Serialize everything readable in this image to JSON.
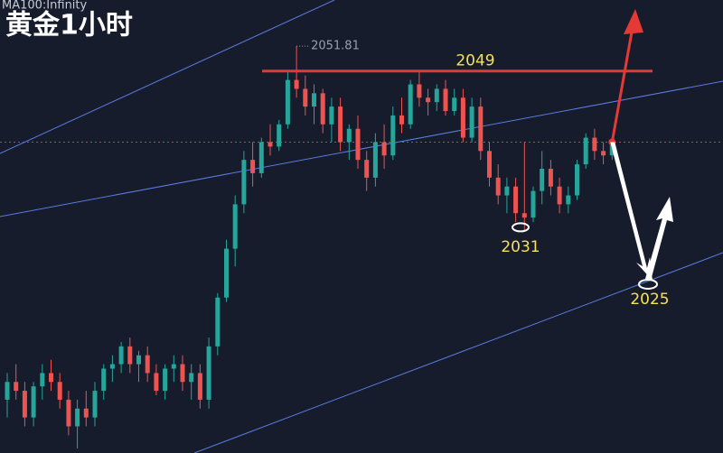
{
  "chart_data": {
    "type": "candlestick",
    "title": "黄金1小时",
    "indicator": "MA100:Infinity",
    "ylim": [
      2006,
      2057
    ],
    "up_color": "#26a69a",
    "down_color": "#ef5350",
    "open": [
      2012,
      2014,
      2013,
      2010,
      2013.5,
      2015,
      2014,
      2012,
      2009,
      2011,
      2010,
      2013,
      2015.5,
      2016,
      2018,
      2016,
      2017,
      2015,
      2013,
      2015.5,
      2016,
      2014,
      2015,
      2012,
      2018,
      2023.5,
      2029,
      2034,
      2039,
      2037.5,
      2041,
      2040.5,
      2043,
      2048,
      2047,
      2045,
      2046.5,
      2043,
      2045,
      2041,
      2042.5,
      2039,
      2037,
      2041,
      2039.5,
      2044,
      2043,
      2047.5,
      2046,
      2045.5,
      2047,
      2044.5,
      2046,
      2041.5,
      2045,
      2040,
      2037,
      2035,
      2036,
      2033,
      2032.5,
      2035.5,
      2038,
      2036,
      2034,
      2035,
      2038.5,
      2041.5,
      2040,
      2039.5
    ],
    "high": [
      2015,
      2016,
      2014,
      2014,
      2016,
      2016.5,
      2015,
      2013,
      2012,
      2013,
      2014,
      2016,
      2017,
      2018.5,
      2019,
      2017.5,
      2018,
      2016,
      2016,
      2017,
      2017,
      2016,
      2016,
      2019,
      2024,
      2030,
      2035,
      2040,
      2041,
      2041.5,
      2043,
      2043.5,
      2049,
      2051.81,
      2048.5,
      2047.5,
      2047,
      2046,
      2046,
      2043,
      2044,
      2040,
      2042,
      2043,
      2045,
      2046,
      2048,
      2049,
      2047,
      2047.5,
      2048,
      2047,
      2047,
      2046,
      2046,
      2041,
      2038.5,
      2037,
      2037,
      2041,
      2036,
      2040,
      2039,
      2037,
      2036,
      2039,
      2042,
      2042.5,
      2041,
      2041.5
    ],
    "low": [
      2010,
      2012,
      2009,
      2009,
      2012,
      2013,
      2011,
      2008,
      2006.5,
      2009,
      2009,
      2012,
      2014,
      2015,
      2015,
      2014,
      2014,
      2012.5,
      2012,
      2014,
      2013,
      2012,
      2011,
      2011,
      2017,
      2023,
      2027,
      2033,
      2036,
      2037,
      2039.5,
      2040,
      2042.5,
      2046,
      2044,
      2043,
      2042,
      2041,
      2040,
      2039,
      2038,
      2035.5,
      2036,
      2038,
      2039,
      2042,
      2042.5,
      2045,
      2044,
      2044.5,
      2044,
      2044,
      2041,
      2041,
      2039,
      2036,
      2034,
      2033,
      2032,
      2031,
      2032,
      2034,
      2035,
      2033,
      2033,
      2034.5,
      2038,
      2039,
      2038.5,
      2039
    ],
    "close": [
      2014,
      2013,
      2010,
      2013.5,
      2015,
      2014,
      2012,
      2009,
      2011,
      2010,
      2013,
      2015.5,
      2016,
      2018,
      2016,
      2017,
      2015,
      2013,
      2015.5,
      2016,
      2014,
      2015,
      2012,
      2018,
      2023.5,
      2029,
      2034,
      2039,
      2037.5,
      2041,
      2040.5,
      2043,
      2048,
      2047,
      2045,
      2046.5,
      2043,
      2045,
      2041,
      2042.5,
      2039,
      2037,
      2041,
      2039.5,
      2044,
      2043,
      2047.5,
      2046,
      2045.5,
      2047,
      2044.5,
      2046,
      2041.5,
      2045,
      2040,
      2037,
      2035,
      2036,
      2033,
      2032.5,
      2035.5,
      2038,
      2036,
      2034,
      2035,
      2038.5,
      2041.5,
      2040,
      2039.5,
      2041
    ],
    "annotations": [
      {
        "value": 2051.81,
        "label": "2051.81"
      },
      {
        "value": 2049,
        "label": "2049"
      },
      {
        "value": 2031,
        "label": "2031"
      },
      {
        "value": 2025,
        "label": "2025"
      }
    ]
  }
}
